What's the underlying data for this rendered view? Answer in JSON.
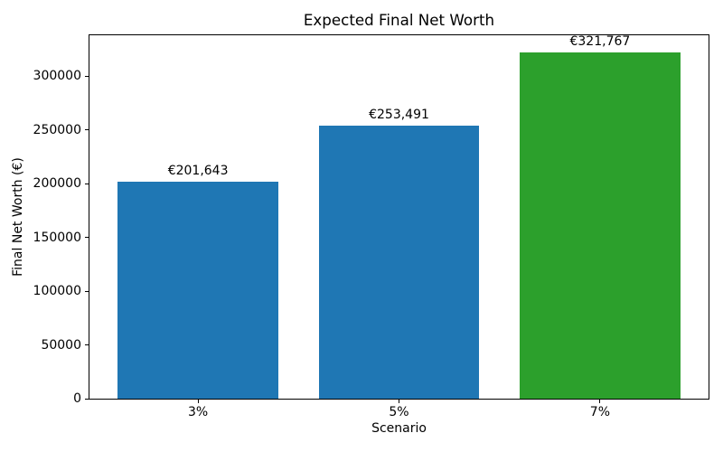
{
  "chart_data": {
    "type": "bar",
    "title": "Expected Final Net Worth",
    "xlabel": "Scenario",
    "ylabel": "Final Net Worth (€)",
    "categories": [
      "3%",
      "5%",
      "7%"
    ],
    "values": [
      201643,
      253491,
      321767
    ],
    "value_labels": [
      "€201,643",
      "€253,491",
      "€321,767"
    ],
    "bar_colors": [
      "#1f77b4",
      "#1f77b4",
      "#2ca02c"
    ],
    "yticks": [
      0,
      50000,
      100000,
      150000,
      200000,
      250000,
      300000
    ],
    "ytick_labels": [
      "0",
      "50000",
      "100000",
      "150000",
      "200000",
      "250000",
      "300000"
    ],
    "ylim": [
      0,
      337855
    ],
    "xlim": [
      -0.54,
      2.54
    ],
    "bar_width": 0.8,
    "grid": false,
    "legend": "none",
    "background_color": "#ffffff",
    "axis_color": "#000000",
    "text_color": "#000000"
  }
}
